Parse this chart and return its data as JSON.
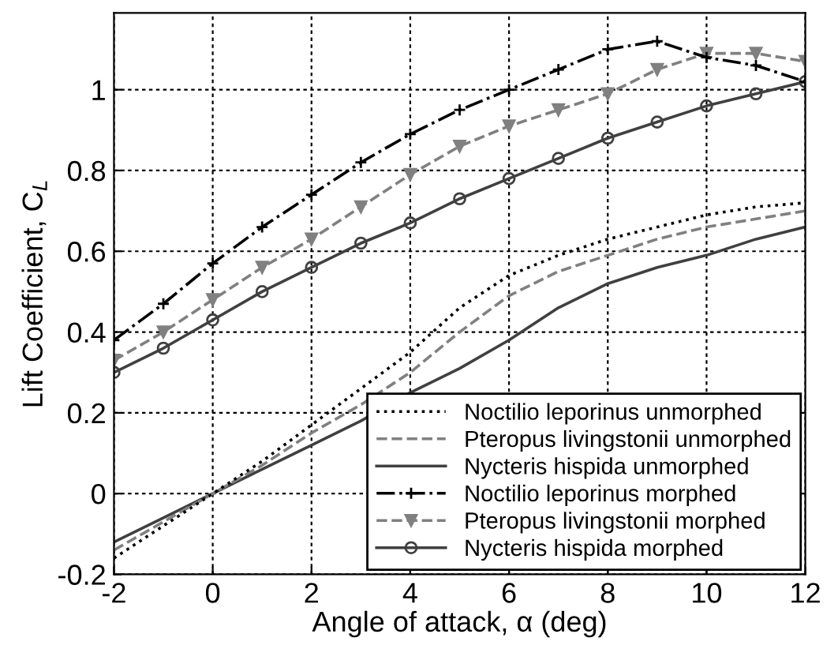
{
  "chart_data": {
    "type": "line",
    "xlabel": "Angle of attack, α (deg)",
    "ylabel": "Lift Coefficient, C$_{L}$",
    "x": [
      -2,
      -1,
      0,
      1,
      2,
      3,
      4,
      5,
      6,
      7,
      8,
      9,
      10,
      11,
      12
    ],
    "series": [
      {
        "name": "Noctilio leporinus unmorphed",
        "color": "#000000",
        "line_style": "dotted",
        "marker": "none",
        "values": [
          -0.16,
          -0.08,
          0,
          0.08,
          0.17,
          0.26,
          0.35,
          0.46,
          0.54,
          0.59,
          0.63,
          0.66,
          0.69,
          0.71,
          0.72
        ]
      },
      {
        "name": "Pteropus livingstonii unmorphed",
        "color": "#808080",
        "line_style": "dashed",
        "marker": "none",
        "values": [
          -0.14,
          -0.07,
          0,
          0.07,
          0.15,
          0.22,
          0.3,
          0.4,
          0.49,
          0.55,
          0.59,
          0.63,
          0.66,
          0.68,
          0.7
        ]
      },
      {
        "name": "Nycteris hispida unmorphed",
        "color": "#404040",
        "line_style": "solid",
        "marker": "none",
        "values": [
          -0.12,
          -0.06,
          0,
          0.06,
          0.12,
          0.18,
          0.25,
          0.31,
          0.38,
          0.46,
          0.52,
          0.56,
          0.59,
          0.63,
          0.66
        ]
      },
      {
        "name": "Noctilio leporinus morphed",
        "color": "#000000",
        "line_style": "dashdot",
        "marker": "cross",
        "values": [
          0.38,
          0.47,
          0.57,
          0.66,
          0.74,
          0.82,
          0.89,
          0.95,
          1.0,
          1.05,
          1.1,
          1.12,
          1.08,
          1.06,
          1.02
        ]
      },
      {
        "name": "Pteropus livingstonii morphed",
        "color": "#808080",
        "line_style": "dashed",
        "marker": "triangle",
        "values": [
          0.33,
          0.4,
          0.48,
          0.56,
          0.63,
          0.71,
          0.79,
          0.86,
          0.91,
          0.95,
          0.99,
          1.05,
          1.09,
          1.09,
          1.07
        ]
      },
      {
        "name": "Nycteris hispida morphed",
        "color": "#404040",
        "line_style": "solid",
        "marker": "circle",
        "values": [
          0.3,
          0.36,
          0.43,
          0.5,
          0.56,
          0.62,
          0.67,
          0.73,
          0.78,
          0.83,
          0.88,
          0.92,
          0.96,
          0.99,
          1.02
        ]
      }
    ],
    "xlim": [
      -2,
      12
    ],
    "xticks": [
      -2,
      0,
      2,
      4,
      6,
      8,
      10,
      12
    ],
    "ylim": [
      -0.2,
      1.19
    ],
    "yticks": [
      -0.2,
      0,
      0.2,
      0.4,
      0.6,
      0.8,
      1
    ],
    "grid": true,
    "legend": "bottom right"
  }
}
